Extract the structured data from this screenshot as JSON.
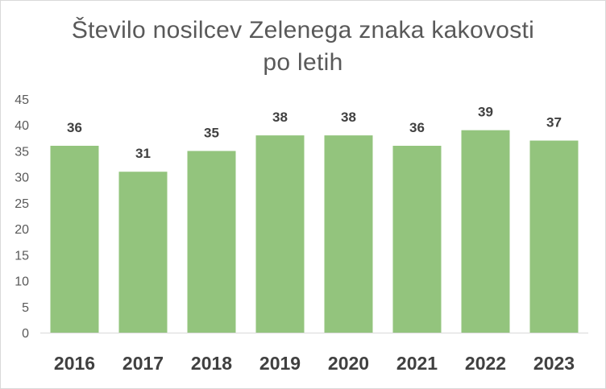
{
  "chart_data": {
    "type": "bar",
    "title_lines": [
      "Število nosilcev Zelenega znaka kakovosti",
      "po letih"
    ],
    "categories": [
      "2016",
      "2017",
      "2018",
      "2019",
      "2020",
      "2021",
      "2022",
      "2023"
    ],
    "values": [
      36,
      31,
      35,
      38,
      38,
      36,
      39,
      37
    ],
    "data_labels": [
      "36",
      "31",
      "35",
      "38",
      "38",
      "36",
      "39",
      "37"
    ],
    "y_ticks": [
      "0",
      "5",
      "10",
      "15",
      "20",
      "25",
      "30",
      "35",
      "40",
      "45"
    ],
    "ylim": [
      0,
      45
    ],
    "grid": false,
    "legend": "none",
    "bar_color": "#93c47d",
    "axis_color": "#d9d9d9"
  }
}
